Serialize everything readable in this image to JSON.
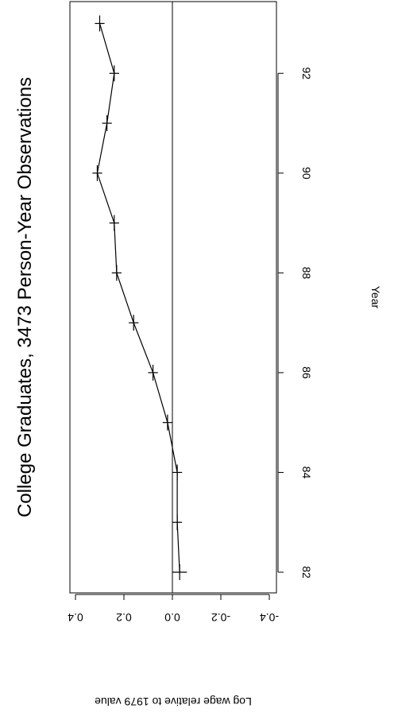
{
  "chart_data": {
    "type": "line",
    "title": "College Graduates, 3473 Person-Year Observations",
    "xlabel": "Year",
    "ylabel": "Log wage relative to 1979 value",
    "xlim": [
      82,
      93
    ],
    "ylim": [
      -0.4,
      0.4
    ],
    "x_ticks": [
      "82",
      "84",
      "86",
      "88",
      "90",
      "92"
    ],
    "y_ticks": [
      "-0.4",
      "-0.2",
      "0.0",
      "0.2",
      "0.4"
    ],
    "reference_line_y": 0.0,
    "series": [
      {
        "x": [
          82,
          83,
          84,
          85,
          86,
          87,
          88,
          89,
          90,
          91,
          92,
          93
        ],
        "y": [
          -0.03,
          -0.02,
          -0.02,
          0.02,
          0.08,
          0.16,
          0.23,
          0.24,
          0.31,
          0.27,
          0.24,
          0.3
        ],
        "ci_half_width": [
          0.03,
          0.02,
          0.02,
          0.02,
          0.02,
          0.02,
          0.02,
          0.02,
          0.02,
          0.02,
          0.02,
          0.02
        ]
      }
    ]
  }
}
